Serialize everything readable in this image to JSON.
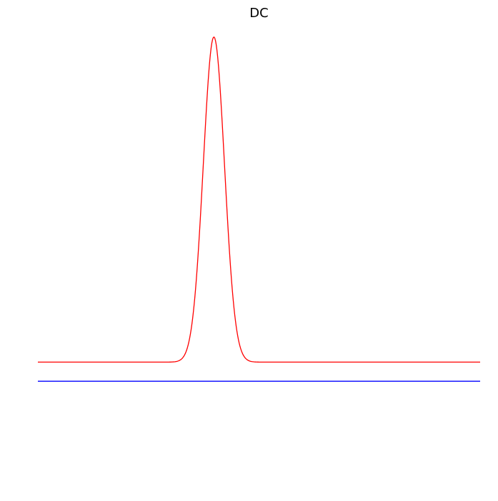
{
  "chart_data": {
    "type": "line",
    "title": "DC",
    "xlabel": "",
    "ylabel": "",
    "axes_visible": false,
    "grid": false,
    "xlim": [
      0,
      1
    ],
    "ylim": [
      0,
      1
    ],
    "series": [
      {
        "color": "#0000ff",
        "kind": "constant",
        "y": 0.24
      },
      {
        "color": "#ff0000",
        "kind": "gaussian",
        "baseline": 0.28,
        "amplitude": 0.68,
        "center": 0.398,
        "sigma": 0.024
      }
    ]
  }
}
